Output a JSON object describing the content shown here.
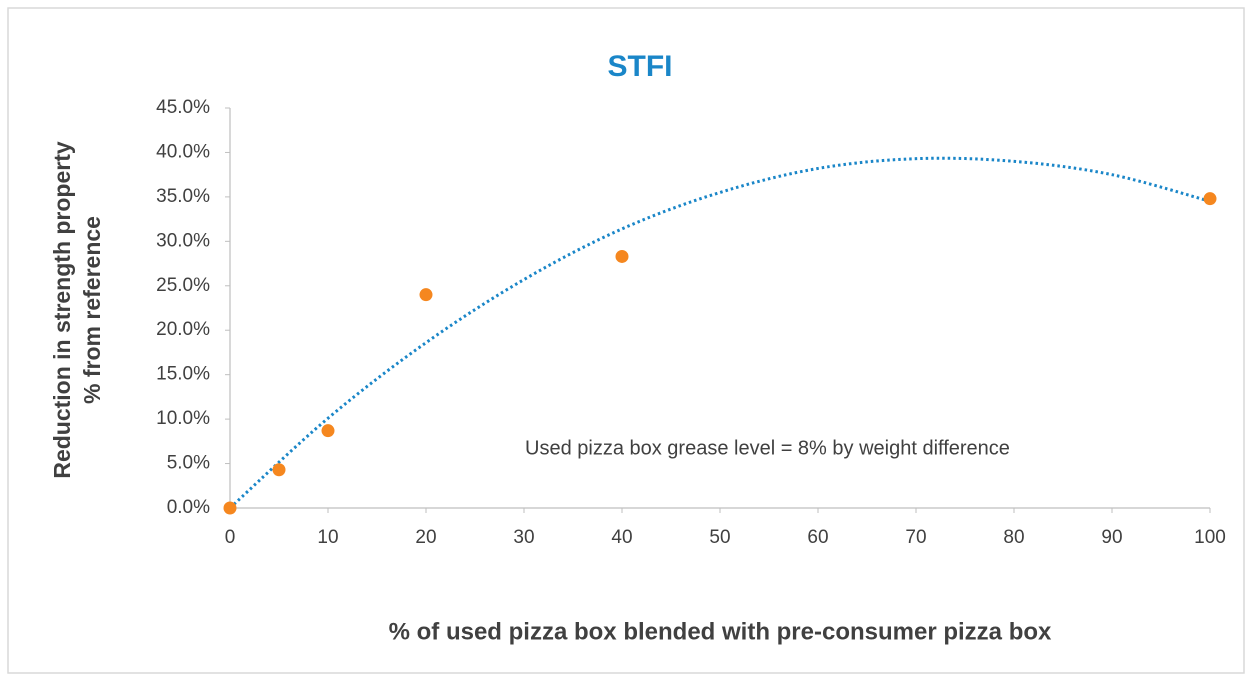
{
  "chart_data": {
    "type": "scatter",
    "title": "STFI",
    "ylabel": [
      "Reduction in strength property",
      "% from reference"
    ],
    "xlabel": "% of used pizza box blended with pre-consumer pizza box",
    "annotation": "Used pizza box grease level = 8% by weight difference",
    "series": [
      {
        "color": "#f5871f",
        "x": [
          0,
          5,
          10,
          20,
          40,
          100
        ],
        "values": [
          0,
          4.3,
          8.7,
          24.0,
          28.3,
          34.8
        ]
      },
      {
        "type": "line",
        "style": "dotted",
        "color": "#1a86c8",
        "x": [
          0,
          10,
          20,
          30,
          40,
          50,
          60,
          70,
          80,
          90,
          100
        ],
        "values": [
          0,
          10.1,
          18.6,
          25.7,
          31.4,
          35.5,
          38.2,
          39.3,
          39.0,
          37.5,
          34.5
        ]
      }
    ],
    "xlim": [
      0,
      100
    ],
    "xticks": [
      0,
      10,
      20,
      30,
      40,
      50,
      60,
      70,
      80,
      90,
      100
    ],
    "ylim": [
      0,
      45
    ],
    "yticks": [
      {
        "value": 0,
        "label": "0.0%"
      },
      {
        "value": 5,
        "label": "5.0%"
      },
      {
        "value": 10,
        "label": "10.0%"
      },
      {
        "value": 15,
        "label": "15.0%"
      },
      {
        "value": 20,
        "label": "20.0%"
      },
      {
        "value": 25,
        "label": "25.0%"
      },
      {
        "value": 30,
        "label": "30.0%"
      },
      {
        "value": 35,
        "label": "35.0%"
      },
      {
        "value": 40,
        "label": "40.0%"
      },
      {
        "value": 45,
        "label": "45.0%"
      }
    ],
    "grid": false
  }
}
